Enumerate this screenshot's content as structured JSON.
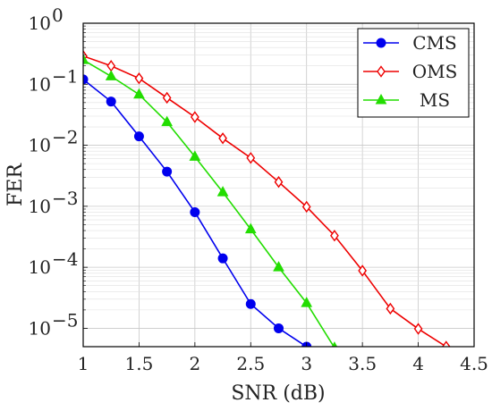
{
  "chart_data": {
    "type": "line",
    "xlabel": "SNR (dB)",
    "ylabel": "FER",
    "xlim": [
      1,
      4.5
    ],
    "ylim": [
      5e-06,
      1
    ],
    "yscale": "log",
    "grid": true,
    "legend": "top-right",
    "x_ticks": [
      1,
      1.5,
      2,
      2.5,
      3,
      3.5,
      4,
      4.5
    ],
    "x_tick_labels": [
      "1",
      "1.5",
      "2",
      "2.5",
      "3",
      "3.5",
      "4",
      "4.5"
    ],
    "y_ticks": [
      1,
      0.1,
      0.01,
      0.001,
      0.0001,
      1e-05
    ],
    "y_tick_exponents": [
      "0",
      "−1",
      "−2",
      "−3",
      "−4",
      "−5"
    ],
    "y_tick_base": "10",
    "series": [
      {
        "name": "CMS",
        "color": "#0000ee",
        "marker": "circle",
        "x": [
          1,
          1.25,
          1.5,
          1.75,
          2,
          2.25,
          2.5,
          2.75,
          3
        ],
        "y": [
          0.12,
          0.052,
          0.014,
          0.0037,
          0.0008,
          0.00014,
          2.5e-05,
          1e-05,
          5e-06
        ]
      },
      {
        "name": "OMS",
        "color": "#ee0000",
        "marker": "diamond",
        "x": [
          1,
          1.25,
          1.5,
          1.75,
          2,
          2.25,
          2.5,
          2.75,
          3,
          3.25,
          3.5,
          3.75,
          4,
          4.25
        ],
        "y": [
          0.29,
          0.2,
          0.125,
          0.06,
          0.029,
          0.013,
          0.0062,
          0.0025,
          0.00098,
          0.00033,
          8.8e-05,
          2.1e-05,
          9.8e-06,
          5e-06
        ]
      },
      {
        "name": "MS",
        "color": "#22dd00",
        "marker": "triangle",
        "x": [
          1,
          1.25,
          1.5,
          1.75,
          2,
          2.25,
          2.5,
          2.75,
          3,
          3.25
        ],
        "y": [
          0.25,
          0.135,
          0.068,
          0.024,
          0.0065,
          0.0017,
          0.00042,
          0.0001,
          2.6e-05,
          4.8e-06
        ]
      }
    ]
  }
}
